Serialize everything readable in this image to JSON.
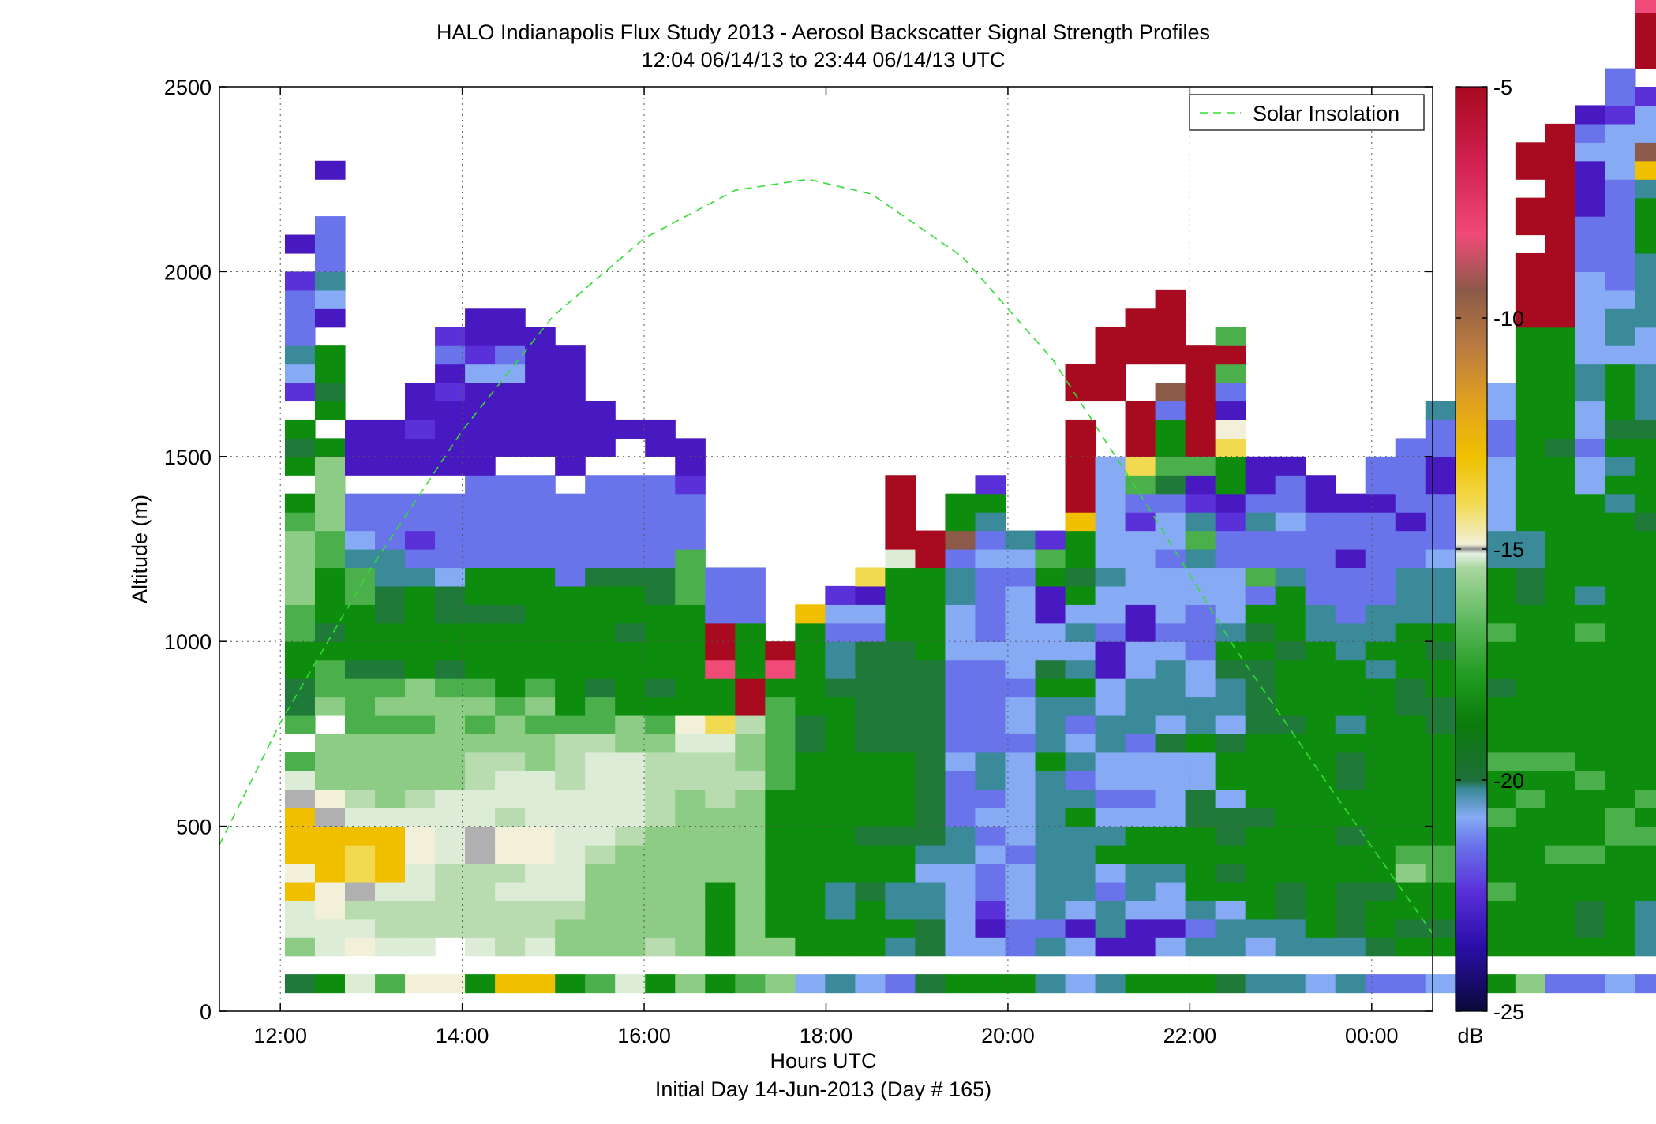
{
  "chart_data": {
    "type": "heatmap",
    "title": "HALO Indianapolis Flux Study 2013 - Aerosol Backscatter Signal Strength Profiles",
    "subtitle": "12:04 06/14/13 to 23:44 06/14/13  UTC",
    "xlabel": "Hours UTC",
    "xlabel2": "Initial Day 14-Jun-2013 (Day # 165)",
    "ylabel": "Altitude (m)",
    "xlim": [
      11.33,
      24.67
    ],
    "ylim": [
      0,
      2500
    ],
    "x_ticks": [
      12,
      14,
      16,
      18,
      20,
      22,
      24
    ],
    "x_tick_labels": [
      "12:00",
      "14:00",
      "16:00",
      "18:00",
      "20:00",
      "22:00",
      "00:00"
    ],
    "y_ticks": [
      0,
      500,
      1000,
      1500,
      2000,
      2500
    ],
    "y_tick_labels": [
      "0",
      "500",
      "1000",
      "1500",
      "2000",
      "2500"
    ],
    "grid": true,
    "colorbar": {
      "label": "dB",
      "range": [
        -25,
        -5
      ],
      "ticks": [
        -25,
        -20,
        -15,
        -10,
        -5
      ],
      "tick_labels": [
        "-25",
        "-20",
        "-15",
        "-10",
        "-5"
      ]
    },
    "legend": {
      "position": "top-right",
      "entries": [
        "Solar Insolation"
      ]
    },
    "overlay_line": {
      "name": "Solar Insolation",
      "style": "dashed",
      "color": "#33dd33",
      "x": [
        11.33,
        12,
        13,
        14,
        15,
        16,
        17,
        17.8,
        18.5,
        19.5,
        20.5,
        21.5,
        22.5,
        23.5,
        24.67
      ],
      "y": [
        450,
        780,
        1200,
        1570,
        1880,
        2090,
        2220,
        2250,
        2210,
        2040,
        1760,
        1380,
        980,
        620,
        210
      ]
    },
    "bin_width_hours": 0.33,
    "bin_height_m": 50,
    "time_start": 12.05,
    "alt_start": 50,
    "value_bands": [
      {
        "code": "W",
        "value": -13
      },
      {
        "code": "Y",
        "value": -13.5
      },
      {
        "code": "O",
        "value": -12.5
      },
      {
        "code": "E",
        "value": -14.8
      },
      {
        "code": "C",
        "value": -15.5
      },
      {
        "code": "L",
        "value": -16.3
      },
      {
        "code": "l",
        "value": -17.3
      },
      {
        "code": "g",
        "value": -18.3
      },
      {
        "code": "G",
        "value": -19.2
      },
      {
        "code": "D",
        "value": -19.7
      },
      {
        "code": "T",
        "value": -20.5
      },
      {
        "code": "B",
        "value": -21.2
      },
      {
        "code": "b",
        "value": -21.7
      },
      {
        "code": "P",
        "value": -22.2
      },
      {
        "code": "p",
        "value": -22.8
      },
      {
        "code": "R",
        "value": -5.5
      },
      {
        "code": "K",
        "value": -7.2
      },
      {
        "code": "N",
        "value": -9
      },
      {
        "code": "S",
        "value": -15.1
      }
    ],
    "columns": [
      "D.lCCYEYYYSCg.gDDGGggllllgG.GDG.PBTbbbP.p",
      "G.CCEEYYYSElll.lggGDGGGggllllG.GDGG.pBTbbb..p",
      "C.ECLSWWYCLlllgggDGGGggTBbb.ppp",
      "g.CLLCYYYCllllglgDGGDDTTbbb.ppp",
      "E.CLLCCEECLlllgllGGGGGTbPbb.ppPpp",
      "E..LLLLCCCClllllgDGGDDBbbbb.ppppPpbP",
      "G.CLLLLSSCCLLlglgGGGDGGbbbbbpppppBPpp",
      "Y.LLLCLEELCCLllgGGGGDGGbbbbb.ppppBbpp",
      "Y.CLLCCEECCCllglgGGGGGGbbbbb.ppppppp",
      "G.llLCCCCCCLLLgGGGGGGGbbbbb.ppppppp",
      "g.lllllLCCCCCLggDGGGGGDbbbbb.ppp",
      "C.llllllLCCCCllGGGGDGGDbbbbb..p",
      "G.LllllllLLLLlgGDGGGGDDbbbbb.pp",
      "l.lllllllllLLCEGGGGGGgggbbbPpp",
      "G.GGGGllllLLLCWGGKRRbbb",
      "g.lllllllllLllLRRGGGbbb",
      "l.lGGGGGGGGgggggGKR",
      "B.GGGGGGGGGGGDDGGGGGY",
      "T.GGTTGGGGGGGGGGDTTbBP",
      "B.GGGDGGDGGGGDDDDDDbBpW",
      "b.TGTTGGDGGGGDDDDDDGGGGCRRRR",
      "D.DDTTBTDDDDDDDDDDGGGGGRR",
      "G.BBBBBTTbbbBbbbbbBBBTTbNGG",
      "G.BpPbbBbBbTTbbbbbBbbbbBbTGP",
      "G.bbBBBbBBBBBbBBbBBBBBbBT",
      "T.TbTTTTTTTTGTTTGDBBppGgP",
      "B.BpBTTTTGTbTBbTGTBTBGDGGYRRRRR.RR",
      "T.pTTbBGTBbBBTTBBppbBBTBBBBBB...RRRR",
      "G.ppBTTGGBbBBbTTTBBppBBBBPbgWRRR..RRR",
      "G.BpBBTGGBBBBDBTTTBbBBBbBBbDgGGbN.RRRR",
      "G.TbTGGGGDDBBGTTBBbbbBBTgTPpgRRRRRR",
      "D.TTBGDGDDBGGDBTTDGTBBBbbPpGGWEpbgRg",
      "T.BTGGGGGDGGGGDDDDGDGbgbbTbpp",
      "T.TTDDGGGGGGGGDGGGDGGGTbbBbbp",
      "B.TGGGGGGGGGGGGGGGGTTbbbbbpp",
      "T.TDDDGGDGGDDGTGGGTTbbbpbbp",
      "b.DGGDGGGGGGGGGGGTGTTbbbbbpbb",
      "b.GDGGlgGGGGGGGDDGGGTTTbbpbbbb",
      "B.GDGGggGGGGGGDDGGDGTTTBbbbppbbT",
      "B.DDGGlGGGGGGGGGGGDGGTTBbbpbbTD",
      "G.GGGgGGGgGGgGGGDGGgGGGTTBBBBbbBB.",
      "l.GGGGGGGGgGgGGGGGGGGDDTTGGGGGGGGGGGRRRR.RR.RR",
      "b.GGGGGgGGGGgGGGGGGGGGGGGGGGGDGGGGGGRRRRRRRRRRR",
      "b.GDDGGgGGGgGGGGGGGgGTGGGGGBBbBBTTBBBBBbbbpppBbp",
      "B.GGGGGGggGGGGGGGGGGGGGGGGTGTGDGGGBTTBbbbbbbBBBPbb",
      "b.TTTGGGgGgGGGGGGGGGGGGGGDGGGGDTTTBBTTTTGGGTYNBBP.RRRKKRRRRR"
    ]
  }
}
